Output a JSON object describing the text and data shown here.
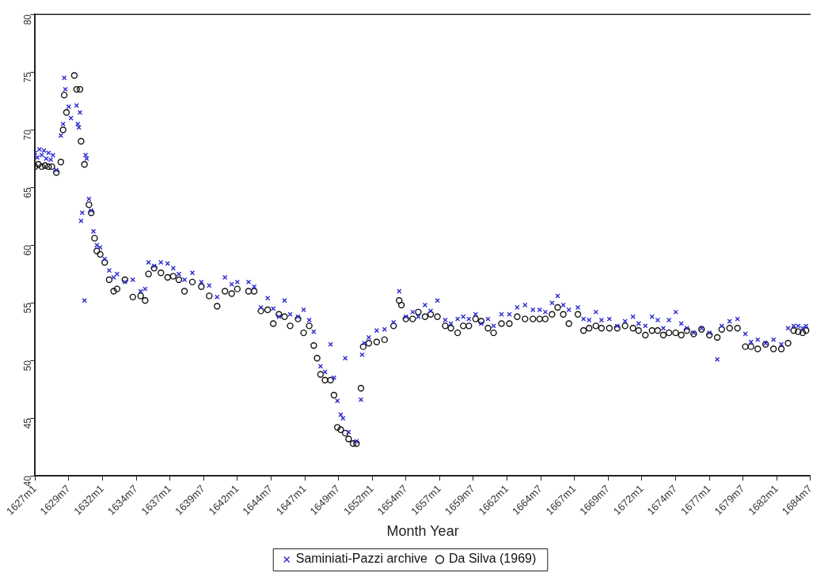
{
  "chart_data": {
    "type": "scatter",
    "xlabel": "Month Year",
    "legend": "bottom",
    "grid": false,
    "xlim": [
      "1627-01",
      "1684-07"
    ],
    "xticks": [
      {
        "value": "1627-01",
        "label": "1627m1"
      },
      {
        "value": "1629-07",
        "label": "1629m7"
      },
      {
        "value": "1632-01",
        "label": "1632m1"
      },
      {
        "value": "1634-07",
        "label": "1634m7"
      },
      {
        "value": "1637-01",
        "label": "1637m1"
      },
      {
        "value": "1639-07",
        "label": "1639m7"
      },
      {
        "value": "1642-01",
        "label": "1642m1"
      },
      {
        "value": "1644-07",
        "label": "1644m7"
      },
      {
        "value": "1647-01",
        "label": "1647m1"
      },
      {
        "value": "1649-07",
        "label": "1649m7"
      },
      {
        "value": "1652-01",
        "label": "1652m1"
      },
      {
        "value": "1654-07",
        "label": "1654m7"
      },
      {
        "value": "1657-01",
        "label": "1657m1"
      },
      {
        "value": "1659-07",
        "label": "1659m7"
      },
      {
        "value": "1662-01",
        "label": "1662m1"
      },
      {
        "value": "1664-07",
        "label": "1664m7"
      },
      {
        "value": "1667-01",
        "label": "1667m1"
      },
      {
        "value": "1669-07",
        "label": "1669m7"
      },
      {
        "value": "1672-01",
        "label": "1672m1"
      },
      {
        "value": "1674-07",
        "label": "1674m7"
      },
      {
        "value": "1677-01",
        "label": "1677m1"
      },
      {
        "value": "1679-07",
        "label": "1679m7"
      },
      {
        "value": "1682-01",
        "label": "1682m1"
      },
      {
        "value": "1684-07",
        "label": "1684m7"
      }
    ],
    "ylim": [
      40,
      80
    ],
    "yticks": [
      40,
      45,
      50,
      55,
      60,
      65,
      70,
      75,
      80
    ],
    "series": [
      {
        "name": "Saminiati-Pazzi archive",
        "color": "#2a2ad0",
        "marker": "cross",
        "x": [
          "1627-01",
          "1627-03",
          "1627-05",
          "1627-07",
          "1627-09",
          "1627-11",
          "1628-01",
          "1628-03",
          "1628-05",
          "1628-08",
          "1628-12",
          "1629-02",
          "1629-03",
          "1629-04",
          "1629-07",
          "1629-09",
          "1630-02",
          "1630-03",
          "1630-04",
          "1630-05",
          "1630-06",
          "1630-07",
          "1630-09",
          "1630-10",
          "1630-11",
          "1631-01",
          "1631-03",
          "1631-05",
          "1631-08",
          "1631-11",
          "1632-03",
          "1632-07",
          "1632-11",
          "1633-02",
          "1633-09",
          "1634-04",
          "1634-11",
          "1635-03",
          "1635-06",
          "1635-11",
          "1636-05",
          "1636-11",
          "1637-04",
          "1637-09",
          "1638-02",
          "1638-09",
          "1639-05",
          "1639-12",
          "1640-07",
          "1641-02",
          "1641-08",
          "1642-01",
          "1642-11",
          "1643-04",
          "1643-10",
          "1644-04",
          "1644-09",
          "1645-02",
          "1645-07",
          "1645-12",
          "1646-07",
          "1646-12",
          "1647-05",
          "1647-09",
          "1648-03",
          "1648-07",
          "1648-12",
          "1649-03",
          "1649-06",
          "1649-09",
          "1649-11",
          "1650-01",
          "1650-04",
          "1650-11",
          "1651-03",
          "1651-04",
          "1651-06",
          "1651-10",
          "1652-05",
          "1652-12",
          "1653-08",
          "1654-01",
          "1654-07",
          "1655-01",
          "1655-06",
          "1655-12",
          "1656-05",
          "1656-11",
          "1657-06",
          "1657-11",
          "1658-05",
          "1658-10",
          "1659-03",
          "1659-09",
          "1660-02",
          "1660-08",
          "1661-01",
          "1661-08",
          "1662-03",
          "1662-10",
          "1663-05",
          "1663-12",
          "1664-06",
          "1664-11",
          "1665-05",
          "1665-10",
          "1666-03",
          "1666-08",
          "1667-04",
          "1667-09",
          "1668-02",
          "1668-08",
          "1669-01",
          "1669-08",
          "1670-03",
          "1670-10",
          "1671-05",
          "1671-10",
          "1672-04",
          "1672-10",
          "1673-03",
          "1673-08",
          "1674-01",
          "1674-07",
          "1674-12",
          "1675-05",
          "1675-11",
          "1676-06",
          "1677-01",
          "1677-08",
          "1677-12",
          "1678-07",
          "1679-02",
          "1679-09",
          "1680-02",
          "1680-08",
          "1681-03",
          "1681-10",
          "1682-05",
          "1682-11",
          "1683-04",
          "1683-08",
          "1683-12",
          "1684-03"
        ],
        "values": [
          68.0,
          67.6,
          68.3,
          67.8,
          68.2,
          67.5,
          68.0,
          67.4,
          67.8,
          66.5,
          69.5,
          70.5,
          74.5,
          73.5,
          72.0,
          71.0,
          72.1,
          70.5,
          70.2,
          71.5,
          62.1,
          62.8,
          55.2,
          67.8,
          67.5,
          64.0,
          63.0,
          61.2,
          60.0,
          59.8,
          58.8,
          57.8,
          57.2,
          57.5,
          56.8,
          57.0,
          56.0,
          56.2,
          58.5,
          58.2,
          58.5,
          58.4,
          58.0,
          57.5,
          57.0,
          57.6,
          56.8,
          56.5,
          55.5,
          57.2,
          56.6,
          56.8,
          56.8,
          56.4,
          54.6,
          55.4,
          54.5,
          53.8,
          55.2,
          54.0,
          53.8,
          54.4,
          53.5,
          52.5,
          49.5,
          49.0,
          51.4,
          48.5,
          46.5,
          45.3,
          45.0,
          50.2,
          43.8,
          43.0,
          46.6,
          50.5,
          51.5,
          52.0,
          52.6,
          52.7,
          53.3,
          56.0,
          53.8,
          54.2,
          53.8,
          54.8,
          54.3,
          55.2,
          53.5,
          53.2,
          53.6,
          53.8,
          53.6,
          54.0,
          53.2,
          53.6,
          53.0,
          54.0,
          54.0,
          54.6,
          54.8,
          54.4,
          54.4,
          54.2,
          55.0,
          55.6,
          54.8,
          54.4,
          54.6,
          53.6,
          53.5,
          54.2,
          53.5,
          53.6,
          53.0,
          53.4,
          53.8,
          53.2,
          53.0,
          53.8,
          53.5,
          52.8,
          53.5,
          54.2,
          53.2,
          52.8,
          52.4,
          52.8,
          52.4,
          50.1,
          53.0,
          53.4,
          53.6,
          52.3,
          51.6,
          51.8,
          51.5,
          51.8,
          51.4,
          52.8,
          53.0,
          53.0,
          52.8,
          53.0
        ]
      },
      {
        "name": "Da Silva (1969)",
        "color": "#111111",
        "marker": "circle",
        "x": [
          "1627-01",
          "1627-04",
          "1627-07",
          "1627-10",
          "1628-01",
          "1628-04",
          "1628-08",
          "1628-12",
          "1629-02",
          "1629-03",
          "1629-05",
          "1629-12",
          "1630-02",
          "1630-05",
          "1630-06",
          "1630-09",
          "1631-01",
          "1631-03",
          "1631-06",
          "1631-08",
          "1631-11",
          "1632-03",
          "1632-07",
          "1632-11",
          "1633-02",
          "1633-09",
          "1634-04",
          "1634-11",
          "1635-03",
          "1635-06",
          "1635-11",
          "1636-05",
          "1636-11",
          "1637-04",
          "1637-09",
          "1638-02",
          "1638-09",
          "1639-05",
          "1639-12",
          "1640-07",
          "1641-02",
          "1641-08",
          "1642-01",
          "1642-11",
          "1643-04",
          "1643-10",
          "1644-04",
          "1644-09",
          "1645-02",
          "1645-07",
          "1645-12",
          "1646-07",
          "1646-12",
          "1647-05",
          "1647-09",
          "1647-12",
          "1648-03",
          "1648-07",
          "1648-12",
          "1649-03",
          "1649-06",
          "1649-09",
          "1650-01",
          "1650-04",
          "1650-08",
          "1650-11",
          "1651-03",
          "1651-05",
          "1651-10",
          "1652-05",
          "1652-12",
          "1653-08",
          "1654-01",
          "1654-03",
          "1654-07",
          "1655-01",
          "1655-06",
          "1655-12",
          "1656-05",
          "1656-11",
          "1657-06",
          "1657-11",
          "1658-05",
          "1658-10",
          "1659-03",
          "1659-09",
          "1660-02",
          "1660-08",
          "1661-01",
          "1661-08",
          "1662-03",
          "1662-10",
          "1663-05",
          "1663-12",
          "1664-06",
          "1664-11",
          "1665-05",
          "1665-10",
          "1666-03",
          "1666-08",
          "1667-04",
          "1667-09",
          "1668-02",
          "1668-08",
          "1669-01",
          "1669-08",
          "1670-03",
          "1670-10",
          "1671-05",
          "1671-10",
          "1672-04",
          "1672-10",
          "1673-03",
          "1673-08",
          "1674-01",
          "1674-07",
          "1674-12",
          "1675-05",
          "1675-11",
          "1676-06",
          "1677-01",
          "1677-08",
          "1677-12",
          "1678-07",
          "1679-02",
          "1679-09",
          "1680-02",
          "1680-08",
          "1681-03",
          "1681-10",
          "1682-05",
          "1682-11",
          "1683-04",
          "1683-08",
          "1683-12",
          "1684-03"
        ],
        "values": [
          66.8,
          67.0,
          66.8,
          66.9,
          66.8,
          66.8,
          66.3,
          67.2,
          70.0,
          73.0,
          71.5,
          74.7,
          73.5,
          73.5,
          69.0,
          67.0,
          63.5,
          62.8,
          60.6,
          59.5,
          59.2,
          58.5,
          57.0,
          56.0,
          56.2,
          57.0,
          55.5,
          55.6,
          55.2,
          57.5,
          58.0,
          57.6,
          57.2,
          57.3,
          57.0,
          56.0,
          56.8,
          56.4,
          55.6,
          54.7,
          56.0,
          55.8,
          56.2,
          56.0,
          56.0,
          54.3,
          54.4,
          53.2,
          54.0,
          53.8,
          53.0,
          53.6,
          52.4,
          53.0,
          51.3,
          50.2,
          48.8,
          48.3,
          48.3,
          47.0,
          44.2,
          44.0,
          43.7,
          43.2,
          42.8,
          42.8,
          47.6,
          51.2,
          51.5,
          51.6,
          51.8,
          53.0,
          55.2,
          54.8,
          53.6,
          53.6,
          54.2,
          53.8,
          54.0,
          53.8,
          53.0,
          52.8,
          52.4,
          53.0,
          53.0,
          53.6,
          53.4,
          52.8,
          52.4,
          53.2,
          53.2,
          53.8,
          53.6,
          53.6,
          53.6,
          53.6,
          54.0,
          54.6,
          54.0,
          53.2,
          54.0,
          52.6,
          52.8,
          53.0,
          52.8,
          52.8,
          52.8,
          53.0,
          52.8,
          52.6,
          52.2,
          52.6,
          52.6,
          52.2,
          52.4,
          52.4,
          52.2,
          52.6,
          52.3,
          52.7,
          52.2,
          52.0,
          52.7,
          52.8,
          52.8,
          51.2,
          51.2,
          51.0,
          51.4,
          51.0,
          51.0,
          51.5,
          52.6,
          52.5,
          52.4,
          52.6
        ]
      }
    ]
  }
}
